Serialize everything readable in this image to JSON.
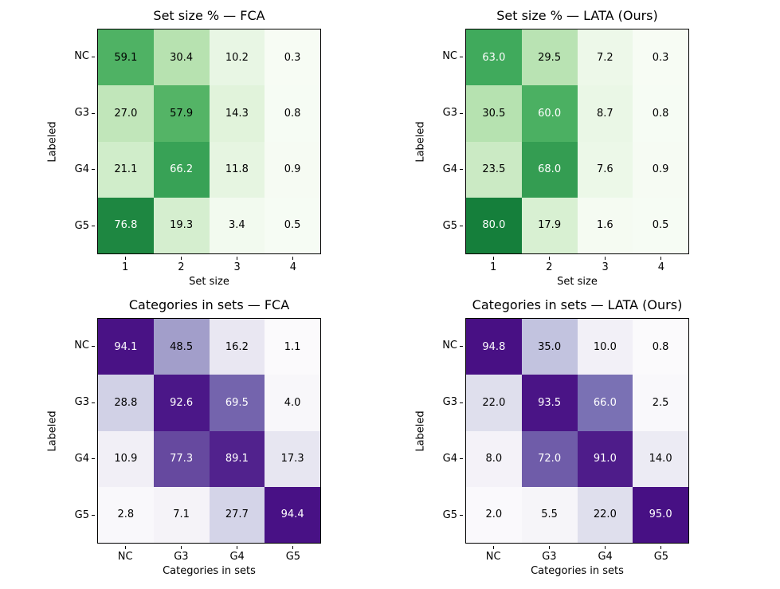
{
  "figure": {
    "background": "#ffffff",
    "text_color": "#000000",
    "white_text_threshold": 60
  },
  "colormaps": {
    "Greens": [
      "#f7fcf5",
      "#e5f5e0",
      "#c7e9c0",
      "#a1d99b",
      "#74c476",
      "#41ab5d",
      "#238b45",
      "#006d2c",
      "#00441b"
    ],
    "Purples": [
      "#fcfbfd",
      "#efedf5",
      "#dadaeb",
      "#bcbddc",
      "#9e9ac8",
      "#807dba",
      "#6a51a3",
      "#54278f",
      "#3f007d"
    ]
  },
  "chart_data": [
    {
      "type": "heatmap",
      "title": "Set size % — FCA",
      "xlabel": "Set size",
      "ylabel": "Labeled",
      "row_labels": [
        "NC",
        "G3",
        "G4",
        "G5"
      ],
      "col_labels": [
        "1",
        "2",
        "3",
        "4"
      ],
      "values": [
        [
          59.1,
          30.4,
          10.2,
          0.3
        ],
        [
          27.0,
          57.9,
          14.3,
          0.8
        ],
        [
          21.1,
          66.2,
          11.8,
          0.9
        ],
        [
          76.8,
          19.3,
          3.4,
          0.5
        ]
      ],
      "colormap": "Greens",
      "vmin": 0,
      "vmax": 100
    },
    {
      "type": "heatmap",
      "title": "Set size % — LATA (Ours)",
      "xlabel": "Set size",
      "ylabel": "Labeled",
      "row_labels": [
        "NC",
        "G3",
        "G4",
        "G5"
      ],
      "col_labels": [
        "1",
        "2",
        "3",
        "4"
      ],
      "values": [
        [
          63.0,
          29.5,
          7.2,
          0.3
        ],
        [
          30.5,
          60.0,
          8.7,
          0.8
        ],
        [
          23.5,
          68.0,
          7.6,
          0.9
        ],
        [
          80.0,
          17.9,
          1.6,
          0.5
        ]
      ],
      "colormap": "Greens",
      "vmin": 0,
      "vmax": 100
    },
    {
      "type": "heatmap",
      "title": "Categories in sets — FCA",
      "xlabel": "Categories in sets",
      "ylabel": "Labeled",
      "row_labels": [
        "NC",
        "G3",
        "G4",
        "G5"
      ],
      "col_labels": [
        "NC",
        "G3",
        "G4",
        "G5"
      ],
      "values": [
        [
          94.1,
          48.5,
          16.2,
          1.1
        ],
        [
          28.8,
          92.6,
          69.5,
          4.0
        ],
        [
          10.9,
          77.3,
          89.1,
          17.3
        ],
        [
          2.8,
          7.1,
          27.7,
          94.4
        ]
      ],
      "colormap": "Purples",
      "vmin": 0,
      "vmax": 100
    },
    {
      "type": "heatmap",
      "title": "Categories in sets — LATA (Ours)",
      "xlabel": "Categories in sets",
      "ylabel": "Labeled",
      "row_labels": [
        "NC",
        "G3",
        "G4",
        "G5"
      ],
      "col_labels": [
        "NC",
        "G3",
        "G4",
        "G5"
      ],
      "values": [
        [
          94.8,
          35.0,
          10.0,
          0.8
        ],
        [
          22.0,
          93.5,
          66.0,
          2.5
        ],
        [
          8.0,
          72.0,
          91.0,
          14.0
        ],
        [
          2.0,
          5.5,
          22.0,
          95.0
        ]
      ],
      "colormap": "Purples",
      "vmin": 0,
      "vmax": 100
    }
  ]
}
